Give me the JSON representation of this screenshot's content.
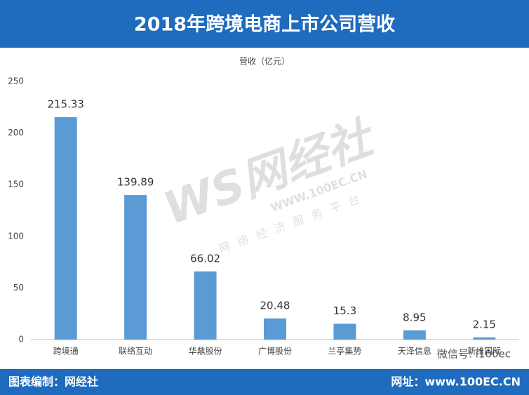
{
  "chart_data": {
    "type": "bar",
    "title": "2018年跨境电商上市公司营收",
    "subtitle": "营收（亿元）",
    "categories": [
      "跨境通",
      "联络互动",
      "华鼎股份",
      "广博股份",
      "兰亭集势",
      "天泽信息",
      "新维国际"
    ],
    "values": [
      215.33,
      139.89,
      66.02,
      20.48,
      15.3,
      8.95,
      2.15
    ],
    "color": "#5b9bd5",
    "ylim": [
      0,
      250
    ],
    "yticks": [
      0,
      50,
      100,
      150,
      200,
      250
    ],
    "grid": false
  },
  "watermark": {
    "logo": "WS网经社",
    "site": "WWW.100EC.CN",
    "slogan": "网络经济服务平台",
    "wechat": "微信号: i100ec"
  },
  "footer": {
    "left": "图表编制：网经社",
    "right": "网址：www.100EC.CN"
  }
}
